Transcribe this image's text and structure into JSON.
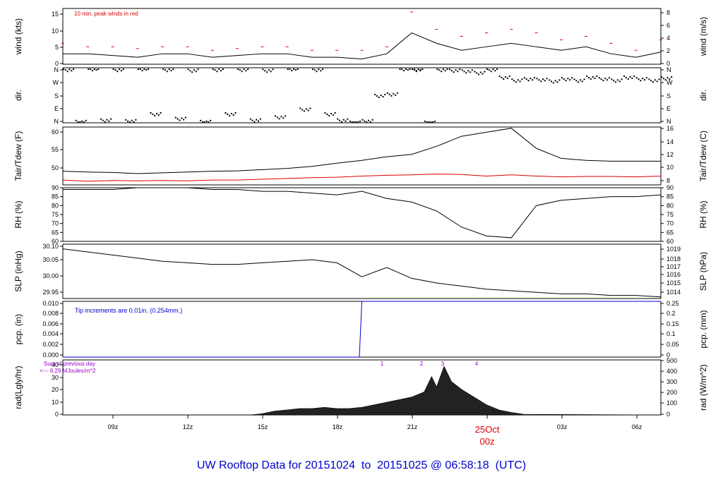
{
  "footer": {
    "title": "UW Rooftop Data for 20151024  to  20151025 @ 06:58:18  (UTC)"
  },
  "colors": {
    "accent_red": "#dd0000",
    "title_blue": "#0000cc",
    "note_purple": "#9900cc",
    "pcp_blue": "#0000cc"
  },
  "chart_data": [
    {
      "type": "line",
      "id": "wind",
      "ylabel_left": "wind (kts)",
      "ylabel_right": "wind (m/s)",
      "annotation": "10 min. peak winds in red",
      "ylim": [
        0,
        16
      ],
      "left_ticks": [
        "0",
        "5",
        "10",
        "15"
      ],
      "right_ticks": [
        "0",
        "2",
        "4",
        "6",
        "8"
      ],
      "x": [
        0,
        1,
        2,
        3,
        4,
        5,
        6,
        7,
        8,
        9,
        10,
        11,
        12,
        13,
        14,
        15,
        16,
        17,
        18,
        19,
        20,
        21,
        22,
        23,
        24
      ],
      "series": [
        {
          "values": [
            3,
            3,
            2.5,
            2,
            3,
            3,
            2,
            2.5,
            3,
            3,
            2,
            2,
            1.5,
            3,
            9,
            6,
            4,
            5,
            6,
            5,
            4,
            5,
            3,
            2,
            3.5
          ]
        },
        {
          "values": [
            6,
            5,
            5,
            4.5,
            5,
            5,
            4,
            4.5,
            5,
            5,
            4,
            4,
            4,
            5,
            15,
            10,
            8,
            9,
            10,
            9,
            7,
            8,
            6,
            4,
            7
          ]
        }
      ]
    },
    {
      "type": "scatter",
      "id": "dir",
      "ylabel_left": "dir.",
      "ylabel_right": "dir.",
      "ylim": [
        0,
        360
      ],
      "left_ticks": [
        "N",
        "E",
        "S",
        "W",
        "N"
      ],
      "right_ticks": [
        "N",
        "E",
        "S",
        "W",
        "N"
      ],
      "series": [
        {
          "x": [
            0,
            0.5,
            1,
            1.5,
            2,
            2.5,
            3,
            3.5,
            4,
            4.5,
            5,
            5.5,
            6,
            6.5,
            7,
            7.5,
            8,
            8.5,
            9,
            9.5,
            10,
            10.5,
            11,
            11.5,
            12,
            12.5,
            13,
            13.5,
            14
          ],
          "values": [
            350,
            10,
            355,
            20,
            350,
            15,
            355,
            60,
            350,
            30,
            345,
            10,
            350,
            60,
            350,
            20,
            345,
            40,
            355,
            90,
            350,
            60,
            20,
            5,
            15,
            180,
            190,
            355,
            350
          ]
        },
        {
          "x": [
            14,
            14.5,
            15,
            15.5,
            16,
            16.5,
            17,
            17.5,
            18,
            18.5,
            19,
            19.5,
            20,
            20.5,
            21,
            21.5,
            22,
            22.5,
            23,
            23.5,
            24
          ],
          "values": [
            355,
            5,
            350,
            345,
            340,
            330,
            350,
            300,
            280,
            290,
            285,
            275,
            290,
            280,
            300,
            290,
            280,
            300,
            290,
            280,
            295
          ]
        }
      ]
    },
    {
      "type": "line",
      "id": "temp",
      "ylabel_left": "Tair/Tdew (F)",
      "ylabel_right": "Tair/Tdew (C)",
      "ylim": [
        46.4,
        60.8
      ],
      "left_ticks": [
        "50",
        "55",
        "60"
      ],
      "right_ticks": [
        "8",
        "10",
        "12",
        "14",
        "16"
      ],
      "x": [
        0,
        1,
        2,
        3,
        4,
        5,
        6,
        7,
        8,
        9,
        10,
        11,
        12,
        13,
        14,
        15,
        16,
        17,
        18,
        19,
        20,
        21,
        22,
        23,
        24
      ],
      "series": [
        {
          "values": [
            49.8,
            49.6,
            49.5,
            49.2,
            49.4,
            49.6,
            49.8,
            49.9,
            50.2,
            50.5,
            51.0,
            51.8,
            52.5,
            53.4,
            54.0,
            56.0,
            58.5,
            59.5,
            60.5,
            55.5,
            53.0,
            52.5,
            52.3,
            52.3,
            52.3
          ]
        },
        {
          "values": [
            47.6,
            47.3,
            47.5,
            47.4,
            47.5,
            47.4,
            47.6,
            47.6,
            47.8,
            48.0,
            48.2,
            48.3,
            48.6,
            48.8,
            48.9,
            49.1,
            49.0,
            48.6,
            48.9,
            48.6,
            48.4,
            48.5,
            48.5,
            48.4,
            48.6
          ]
        }
      ]
    },
    {
      "type": "line",
      "id": "rh",
      "ylabel_left": "RH (%)",
      "ylabel_right": "RH (%)",
      "ylim": [
        60,
        90
      ],
      "left_ticks": [
        "60",
        "65",
        "70",
        "75",
        "80",
        "85",
        "90"
      ],
      "right_ticks": [
        "60",
        "65",
        "70",
        "75",
        "80",
        "85",
        "90"
      ],
      "x": [
        0,
        1,
        2,
        3,
        4,
        5,
        6,
        7,
        8,
        9,
        10,
        11,
        12,
        13,
        14,
        15,
        16,
        17,
        18,
        19,
        20,
        21,
        22,
        23,
        24
      ],
      "series": [
        {
          "values": [
            89,
            89,
            89,
            90,
            90,
            90,
            89,
            89,
            88,
            88,
            87,
            86,
            88,
            84,
            82,
            77,
            68,
            63,
            62,
            80,
            83,
            84,
            85,
            85,
            86
          ]
        }
      ]
    },
    {
      "type": "line",
      "id": "slp",
      "ylabel_left": "SLP (inHg)",
      "ylabel_right": "SLP (hPa)",
      "ylim": [
        29.93,
        30.105
      ],
      "left_ticks": [
        "29.95",
        "30.00",
        "30.05",
        "30.10"
      ],
      "right_ticks": [
        "1014",
        "1015",
        "1016",
        "1017",
        "1018",
        "1019"
      ],
      "x": [
        0,
        1,
        2,
        3,
        4,
        5,
        6,
        7,
        8,
        9,
        10,
        11,
        12,
        13,
        14,
        15,
        16,
        17,
        18,
        19,
        20,
        21,
        22,
        23,
        24
      ],
      "series": [
        {
          "values": [
            30.09,
            30.08,
            30.07,
            30.06,
            30.05,
            30.045,
            30.04,
            30.04,
            30.045,
            30.05,
            30.055,
            30.045,
            30.0,
            30.03,
            29.995,
            29.98,
            29.97,
            29.96,
            29.955,
            29.95,
            29.945,
            29.945,
            29.94,
            29.94,
            29.935
          ]
        }
      ]
    },
    {
      "type": "line",
      "id": "pcp",
      "ylabel_left": "pcp. (in)",
      "ylabel_right": "pcp. (mm)",
      "annotation": "Tip increments are 0.01in. (0.254mm.)",
      "ylim": [
        0,
        0.01
      ],
      "left_ticks": [
        "0.000",
        "0.002",
        "0.004",
        "0.006",
        "0.008",
        "0.010"
      ],
      "right_ticks": [
        "0",
        "0.05",
        "0.1",
        "0.15",
        "0.2",
        "0.25"
      ],
      "x": [
        0,
        11.9,
        12.0,
        24
      ],
      "series": [
        {
          "values": [
            0,
            0,
            0.01,
            0.01
          ]
        }
      ]
    },
    {
      "type": "area",
      "id": "rad",
      "ylabel_left": "rad(Lgly/hr)",
      "ylabel_right": "rad (W/m^2)",
      "note_line1": "Sum of previous day",
      "note_line2": "<--- 6.29 MJoules/m^2",
      "peaks": [
        "1",
        "2",
        "3",
        "4"
      ],
      "ylim": [
        0,
        43
      ],
      "left_ticks": [
        "0",
        "10",
        "20",
        "30",
        "40"
      ],
      "right_ticks": [
        "0",
        "100",
        "200",
        "300",
        "400",
        "500"
      ],
      "x": [
        0,
        7.5,
        8,
        8.5,
        9,
        9.5,
        10,
        10.5,
        11,
        11.5,
        12,
        12.5,
        13,
        13.5,
        14,
        14.5,
        14.8,
        15,
        15.3,
        15.6,
        16,
        16.5,
        17,
        17.5,
        18,
        18.5,
        24
      ],
      "series": [
        {
          "values": [
            0,
            0,
            1,
            3,
            4,
            5,
            5,
            6,
            5,
            5,
            6,
            8,
            10,
            12,
            14,
            18,
            30,
            22,
            38,
            26,
            20,
            14,
            8,
            4,
            2,
            0.5,
            0
          ]
        }
      ],
      "xticks": [
        "09z",
        "12z",
        "15z",
        "18z",
        "21z",
        "25Oct",
        "03z",
        "06z"
      ],
      "date_label_line1": "25Oct",
      "date_label_line2": "00z"
    }
  ]
}
